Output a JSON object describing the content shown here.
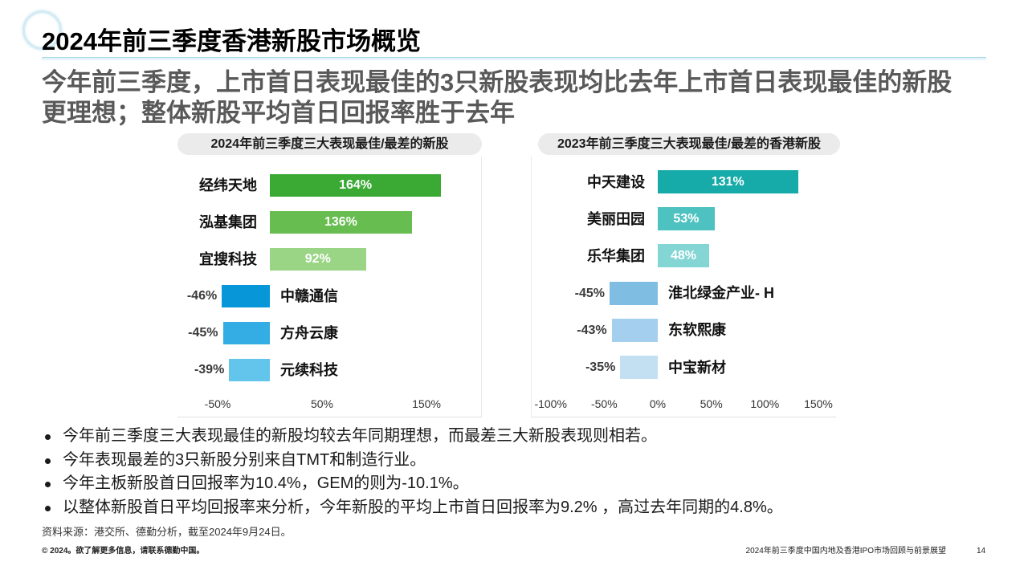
{
  "slide": {
    "title": "2024年前三季度香港新股市场概览",
    "subtitle_lines": [
      "今年前三季度，上市首日表现最佳的3只新股表现均比去年上市首日表现最佳的新股",
      "更理想；整体新股平均首日回报率胜于去年"
    ]
  },
  "chart_data": [
    {
      "type": "bar",
      "orientation": "horizontal",
      "title": "2024年前三季度三大表现最佳/最差的新股",
      "categories": [
        "经纬天地",
        "泓基集团",
        "宜搜科技",
        "中赣通信",
        "方舟云康",
        "元续科技"
      ],
      "values": [
        164,
        136,
        92,
        -46,
        -45,
        -39
      ],
      "value_labels": [
        "164%",
        "136%",
        "92%",
        "-46%",
        "-45%",
        "-39%"
      ],
      "colors": [
        "#3aaa35",
        "#67bd4f",
        "#99d585",
        "#0797d8",
        "#33ade3",
        "#63c4ec"
      ],
      "ticks": [
        {
          "value": -50,
          "label": "-50%"
        },
        {
          "value": 50,
          "label": "50%"
        },
        {
          "value": 150,
          "label": "150%"
        }
      ],
      "grid": false
    },
    {
      "type": "bar",
      "orientation": "horizontal",
      "title": "2023年前三季度三大表现最佳/最差的香港新股",
      "categories": [
        "中天建设",
        "美丽田园",
        "乐华集团",
        "淮北绿金产业- H",
        "东软熙康",
        "中宝新材"
      ],
      "values": [
        131,
        53,
        48,
        -45,
        -43,
        -35
      ],
      "value_labels": [
        "131%",
        "53%",
        "48%",
        "-45%",
        "-43%",
        "-35%"
      ],
      "colors": [
        "#16aaa8",
        "#4ec2c0",
        "#84d6d4",
        "#80bde3",
        "#a4cfee",
        "#c3e0f3"
      ],
      "ticks": [
        {
          "value": -100,
          "label": "-100%"
        },
        {
          "value": -50,
          "label": "-50%"
        },
        {
          "value": 0,
          "label": "0%"
        },
        {
          "value": 50,
          "label": "50%"
        },
        {
          "value": 100,
          "label": "100%"
        },
        {
          "value": 150,
          "label": "150%"
        }
      ],
      "grid": false
    }
  ],
  "bullets": [
    "今年前三季度三大表现最佳的新股均较去年同期理想，而最差三大新股表现则相若。",
    "今年表现最差的3只新股分别来自TMT和制造行业。",
    "今年主板新股首日回报率为10.4%，GEM的则为-10.1%。",
    "以整体新股首日平均回报率来分析，今年新股的平均上市首日回报率为9.2% ，高过去年同期的4.8%。"
  ],
  "source": "资料来源：港交所、德勤分析，截至2024年9月24日。",
  "footer": {
    "copyright": "© 2024。欲了解更多信息，请联系德勤中国。",
    "report_title": "2024年前三季度中国内地及香港IPO市场回顾与前景展望",
    "page_number": "14"
  }
}
